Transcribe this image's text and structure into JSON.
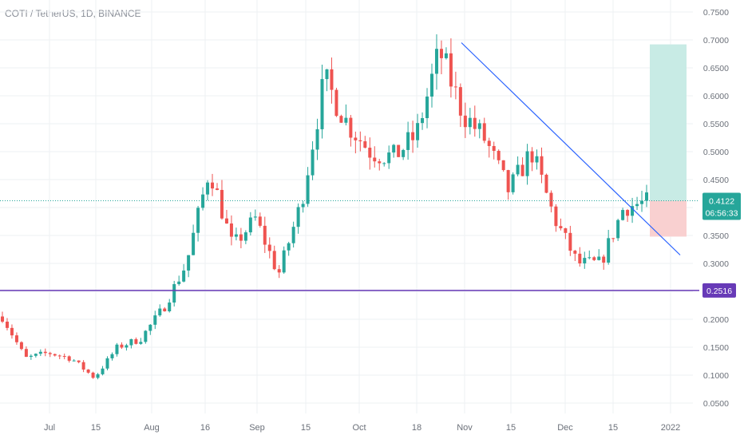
{
  "symbol_title": "COTI / TetherUS, 1D, BINANCE",
  "colors": {
    "up": "#26a69a",
    "down": "#ef5350",
    "trendline": "#2962ff",
    "support": "#673ab7",
    "profit_zone": "#c8ebe5",
    "loss_zone": "#f9d0d0",
    "grid": "#eef0f3",
    "price_tag": "#26a69a"
  },
  "price_labels": {
    "current": "0.4122",
    "countdown": "06:56:33",
    "support": "0.2516"
  },
  "chart_data": {
    "type": "candlestick",
    "title": "COTI / TetherUS, 1D, BINANCE",
    "ylim": [
      0.0,
      0.78
    ],
    "y_ticks": [
      "0.7500",
      "0.7000",
      "0.6500",
      "0.6000",
      "0.5500",
      "0.5000",
      "0.4500",
      "0.4000",
      "0.3500",
      "0.3000",
      "0.2500",
      "0.2000",
      "0.1500",
      "0.1000",
      "0.0500"
    ],
    "x_ticks": [
      "Jul",
      "15",
      "Aug",
      "16",
      "Sep",
      "15",
      "Oct",
      "18",
      "Nov",
      "15",
      "Dec",
      "15",
      "2022"
    ],
    "current_price": 0.4122,
    "support_level": 0.2516,
    "trendline": {
      "from": 0.695,
      "to": 0.315
    },
    "position": {
      "entry": 0.4122,
      "target": 0.692,
      "stop": 0.348
    },
    "ohlc_anchor_closes": [
      0.205,
      0.13,
      0.14,
      0.13,
      0.095,
      0.15,
      0.165,
      0.22,
      0.3,
      0.47,
      0.33,
      0.38,
      0.28,
      0.41,
      0.63,
      0.55,
      0.5,
      0.49,
      0.53,
      0.68,
      0.57,
      0.52,
      0.43,
      0.5,
      0.38,
      0.3,
      0.3,
      0.4,
      0.41
    ]
  }
}
